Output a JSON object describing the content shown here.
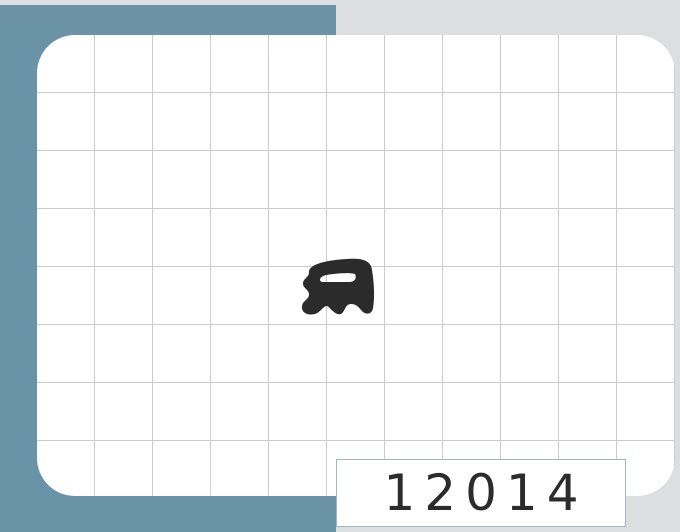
{
  "card": {
    "id_number": "12014",
    "colors": {
      "accent": "#6a93a8",
      "background": "#dcdee0",
      "grid_line": "#c9ccd0",
      "shape": "#2b2b2b"
    },
    "shape_icon": "black-blob-shape-icon"
  }
}
